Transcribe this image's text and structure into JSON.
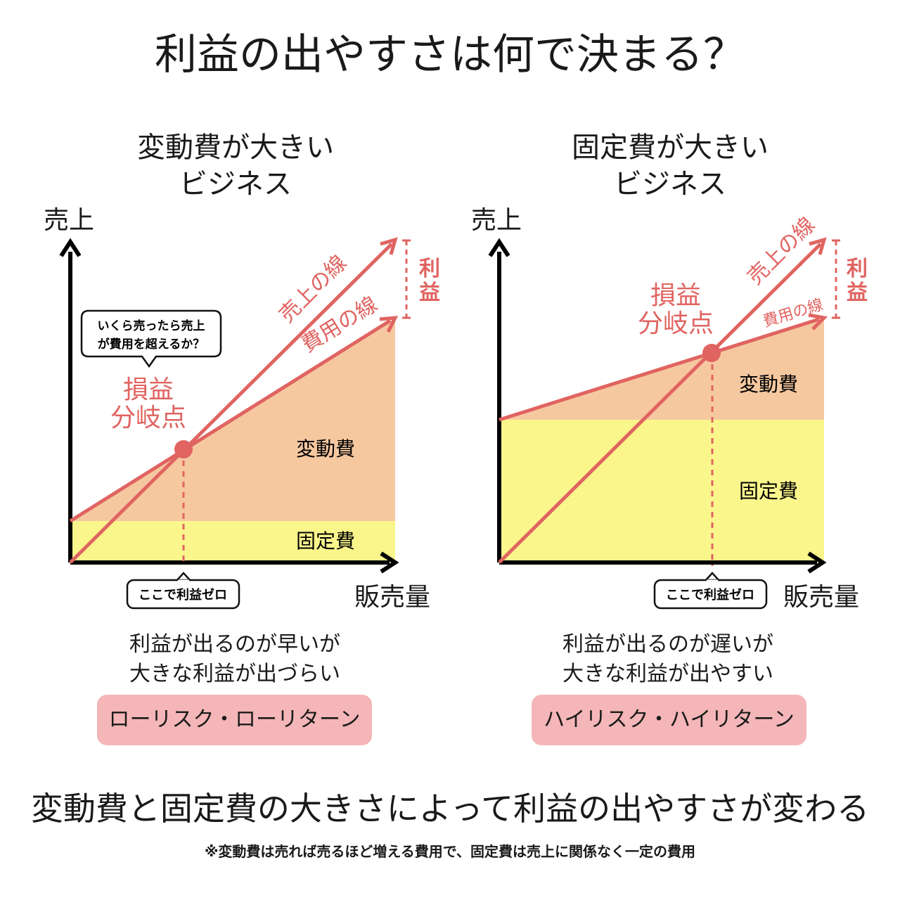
{
  "title": "利益の出やすさは何で決まる？",
  "left": {
    "heading": [
      "変動費が大きい",
      "ビジネス"
    ],
    "y_axis": "売上",
    "x_axis": "販売量",
    "sales_line": "売上の線",
    "cost_line": "費用の線",
    "profit": [
      "利",
      "益"
    ],
    "bep": [
      "損益",
      "分岐点"
    ],
    "bubble": [
      "いくら売ったら売上",
      "が費用を超えるか？"
    ],
    "variable_cost": "変動費",
    "fixed_cost": "固定費",
    "zero_tag": "ここで利益ゼロ",
    "description": [
      "利益が出るのが早いが",
      "大きな利益が出づらい"
    ],
    "risk": "ローリスク・ローリターン"
  },
  "right": {
    "heading": [
      "固定費が大きい",
      "ビジネス"
    ],
    "y_axis": "売上",
    "x_axis": "販売量",
    "sales_line": "売上の線",
    "cost_line": "費用の線",
    "profit": [
      "利",
      "益"
    ],
    "bep": [
      "損益",
      "分岐点"
    ],
    "variable_cost": "変動費",
    "fixed_cost": "固定費",
    "zero_tag": "ここで利益ゼロ",
    "description": [
      "利益が出るのが遅いが",
      "大きな利益が出やすい"
    ],
    "risk": "ハイリスク・ハイリターン"
  },
  "summary": "変動費と固定費の大きさによって利益の出やすさが変わる",
  "footnote": "※変動費は売れば売るほど増える費用で、固定費は売上に関係なく一定の費用",
  "colors": {
    "accent": "#e06461",
    "variable_fill": "#f6c8a0",
    "fixed_fill": "#fbf68c",
    "pill": "#f4b6b8",
    "axis": "#000000"
  }
}
